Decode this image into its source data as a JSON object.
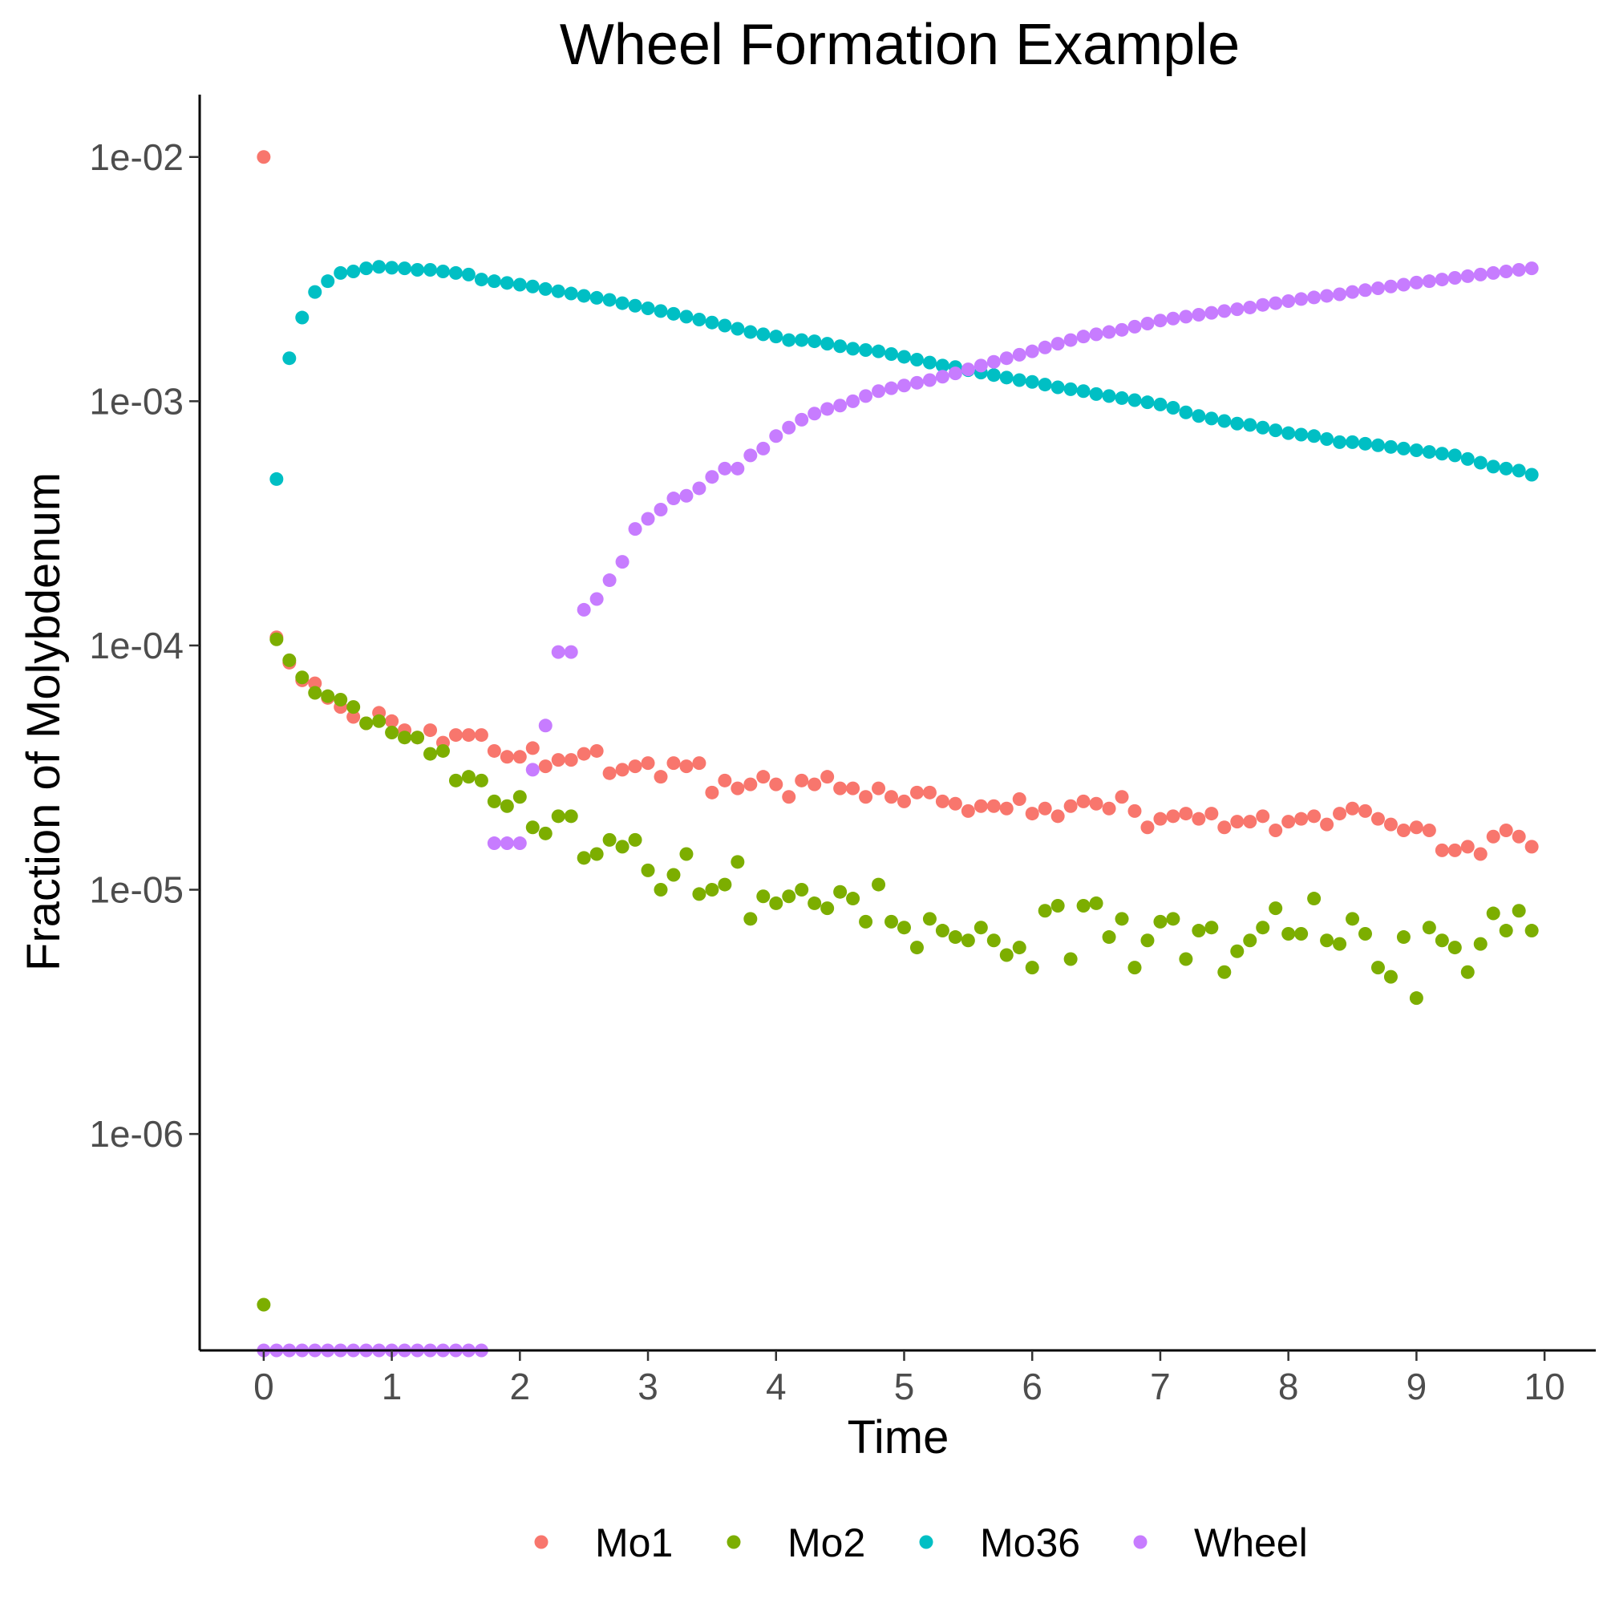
{
  "chart_data": {
    "type": "scatter",
    "title": "Wheel Formation Example",
    "xlabel": "Time",
    "ylabel": "Fraction of Molybdenum",
    "x_scale": "linear",
    "y_scale": "log10",
    "xlim": [
      -0.5,
      10.4
    ],
    "ylim": [
      1.3e-07,
      0.018
    ],
    "x_ticks": [
      0,
      1,
      2,
      3,
      4,
      5,
      6,
      7,
      8,
      9,
      10
    ],
    "x_tick_labels": [
      "0",
      "1",
      "2",
      "3",
      "4",
      "5",
      "6",
      "7",
      "8",
      "9",
      "10"
    ],
    "y_ticks": [
      1e-06,
      1e-05,
      0.0001,
      0.001,
      0.01
    ],
    "y_tick_labels": [
      "1e-06",
      "1e-05",
      "1e-04",
      "1e-03",
      "1e-02"
    ],
    "grid": false,
    "legend_position": "bottom",
    "x": [
      0,
      0.1,
      0.2,
      0.3,
      0.4,
      0.5,
      0.6,
      0.7,
      0.8,
      0.9,
      1.0,
      1.1,
      1.2,
      1.3,
      1.4,
      1.5,
      1.6,
      1.7,
      1.8,
      1.9,
      2.0,
      2.1,
      2.2,
      2.3,
      2.4,
      2.5,
      2.6,
      2.7,
      2.8,
      2.9,
      3.0,
      3.1,
      3.2,
      3.3,
      3.4,
      3.5,
      3.6,
      3.7,
      3.8,
      3.9,
      4.0,
      4.1,
      4.2,
      4.3,
      4.4,
      4.5,
      4.6,
      4.7,
      4.8,
      4.9,
      5.0,
      5.1,
      5.2,
      5.3,
      5.4,
      5.5,
      5.6,
      5.7,
      5.8,
      5.9,
      6.0,
      6.1,
      6.2,
      6.3,
      6.4,
      6.5,
      6.6,
      6.7,
      6.8,
      6.9,
      7.0,
      7.1,
      7.2,
      7.3,
      7.4,
      7.5,
      7.6,
      7.7,
      7.8,
      7.9,
      8.0,
      8.1,
      8.2,
      8.3,
      8.4,
      8.5,
      8.6,
      8.7,
      8.8,
      8.9,
      9.0,
      9.1,
      9.2,
      9.3,
      9.4,
      9.5,
      9.6,
      9.7,
      9.8,
      9.9
    ],
    "series": [
      {
        "name": "Mo1",
        "color": "#F8766D",
        "values": [
          0.01,
          0.000108,
          8.5e-05,
          7.2e-05,
          7e-05,
          6.1e-05,
          5.6e-05,
          5.1e-05,
          4.8e-05,
          5.3e-05,
          4.9e-05,
          4.5e-05,
          4.2e-05,
          4.5e-05,
          4e-05,
          4.3e-05,
          4.3e-05,
          4.3e-05,
          3.7e-05,
          3.5e-05,
          3.5e-05,
          3.8e-05,
          3.2e-05,
          3.4e-05,
          3.4e-05,
          3.6e-05,
          3.7e-05,
          3e-05,
          3.1e-05,
          3.2e-05,
          3.3e-05,
          2.9e-05,
          3.3e-05,
          3.2e-05,
          3.3e-05,
          2.5e-05,
          2.8e-05,
          2.6e-05,
          2.7e-05,
          2.9e-05,
          2.7e-05,
          2.4e-05,
          2.8e-05,
          2.7e-05,
          2.9e-05,
          2.6e-05,
          2.6e-05,
          2.4e-05,
          2.6e-05,
          2.4e-05,
          2.3e-05,
          2.5e-05,
          2.5e-05,
          2.3e-05,
          2.25e-05,
          2.1e-05,
          2.2e-05,
          2.2e-05,
          2.15e-05,
          2.35e-05,
          2.05e-05,
          2.15e-05,
          2e-05,
          2.2e-05,
          2.3e-05,
          2.25e-05,
          2.15e-05,
          2.4e-05,
          2.1e-05,
          1.8e-05,
          1.95e-05,
          2e-05,
          2.05e-05,
          1.95e-05,
          2.05e-05,
          1.8e-05,
          1.9e-05,
          1.9e-05,
          2e-05,
          1.75e-05,
          1.9e-05,
          1.95e-05,
          2e-05,
          1.85e-05,
          2.05e-05,
          2.15e-05,
          2.1e-05,
          1.95e-05,
          1.85e-05,
          1.75e-05,
          1.8e-05,
          1.75e-05,
          1.45e-05,
          1.45e-05,
          1.5e-05,
          1.4e-05,
          1.65e-05,
          1.75e-05,
          1.65e-05,
          1.5e-05
        ]
      },
      {
        "name": "Mo2",
        "color": "#7CAE00",
        "values": [
          2e-07,
          0.000106,
          8.7e-05,
          7.4e-05,
          6.4e-05,
          6.2e-05,
          6e-05,
          5.6e-05,
          4.8e-05,
          4.9e-05,
          4.4e-05,
          4.2e-05,
          4.2e-05,
          3.6e-05,
          3.7e-05,
          2.8e-05,
          2.9e-05,
          2.8e-05,
          2.3e-05,
          2.2e-05,
          2.4e-05,
          1.8e-05,
          1.7e-05,
          2e-05,
          2e-05,
          1.35e-05,
          1.4e-05,
          1.6e-05,
          1.5e-05,
          1.6e-05,
          1.2e-05,
          1e-05,
          1.15e-05,
          1.4e-05,
          9.6e-06,
          1e-05,
          1.05e-05,
          1.3e-05,
          7.6e-06,
          9.4e-06,
          8.8e-06,
          9.4e-06,
          1e-05,
          8.8e-06,
          8.4e-06,
          9.8e-06,
          9.2e-06,
          7.4e-06,
          1.05e-05,
          7.4e-06,
          7e-06,
          5.8e-06,
          7.6e-06,
          6.8e-06,
          6.4e-06,
          6.2e-06,
          7e-06,
          6.2e-06,
          5.4e-06,
          5.8e-06,
          4.8e-06,
          8.2e-06,
          8.6e-06,
          5.2e-06,
          8.6e-06,
          8.8e-06,
          6.4e-06,
          7.6e-06,
          4.8e-06,
          6.2e-06,
          7.4e-06,
          7.6e-06,
          5.2e-06,
          6.8e-06,
          7e-06,
          4.6e-06,
          5.6e-06,
          6.2e-06,
          7e-06,
          8.4e-06,
          6.6e-06,
          6.6e-06,
          9.2e-06,
          6.2e-06,
          6e-06,
          7.6e-06,
          6.6e-06,
          4.8e-06,
          4.4e-06,
          6.4e-06,
          3.6e-06,
          7e-06,
          6.2e-06,
          5.8e-06,
          4.6e-06,
          6e-06,
          8e-06,
          6.8e-06,
          8.2e-06,
          6.8e-06
        ]
      },
      {
        "name": "Mo36",
        "color": "#00BFC4",
        "values": [
          null,
          0.00048,
          0.0015,
          0.0022,
          0.0028,
          0.0031,
          0.00335,
          0.0034,
          0.0035,
          0.00355,
          0.00352,
          0.0035,
          0.00345,
          0.00345,
          0.0034,
          0.00335,
          0.0033,
          0.00315,
          0.0031,
          0.00305,
          0.003,
          0.00295,
          0.00288,
          0.00282,
          0.00276,
          0.0027,
          0.00265,
          0.0026,
          0.00252,
          0.00246,
          0.0024,
          0.00234,
          0.00228,
          0.00222,
          0.00216,
          0.0021,
          0.00204,
          0.00198,
          0.00192,
          0.00188,
          0.00184,
          0.00178,
          0.00178,
          0.00176,
          0.00172,
          0.00168,
          0.00164,
          0.00162,
          0.0016,
          0.00156,
          0.00152,
          0.00148,
          0.00144,
          0.0014,
          0.00138,
          0.00134,
          0.00131,
          0.00128,
          0.00125,
          0.00122,
          0.0012,
          0.00117,
          0.00114,
          0.00112,
          0.0011,
          0.00107,
          0.00105,
          0.00103,
          0.00101,
          0.00099,
          0.00097,
          0.00094,
          0.0009,
          0.00087,
          0.00085,
          0.00083,
          0.00081,
          0.0008,
          0.00078,
          0.00076,
          0.00074,
          0.00073,
          0.00072,
          0.0007,
          0.00068,
          0.00068,
          0.00067,
          0.00066,
          0.00065,
          0.00064,
          0.00063,
          0.00062,
          0.00061,
          0.0006,
          0.00058,
          0.00056,
          0.00054,
          0.00053,
          0.00052,
          0.0005
        ]
      },
      {
        "name": "Wheel",
        "color": "#C77CFF",
        "values": [
          1.3e-07,
          1.3e-07,
          1.3e-07,
          1.3e-07,
          1.3e-07,
          1.3e-07,
          1.3e-07,
          1.3e-07,
          1.3e-07,
          1.3e-07,
          1.3e-07,
          1.3e-07,
          1.3e-07,
          1.3e-07,
          1.3e-07,
          1.3e-07,
          1.3e-07,
          1.3e-07,
          1.55e-05,
          1.55e-05,
          1.55e-05,
          3.1e-05,
          4.7e-05,
          9.4e-05,
          9.4e-05,
          0.00014,
          0.000155,
          0.000185,
          0.00022,
          0.0003,
          0.00033,
          0.00036,
          0.0004,
          0.00041,
          0.00044,
          0.00049,
          0.00053,
          0.00053,
          0.0006,
          0.00064,
          0.00072,
          0.00078,
          0.00084,
          0.00089,
          0.00093,
          0.00096,
          0.001,
          0.00105,
          0.0011,
          0.00113,
          0.00116,
          0.00119,
          0.00122,
          0.00126,
          0.0013,
          0.00135,
          0.0014,
          0.00145,
          0.0015,
          0.00155,
          0.0016,
          0.00166,
          0.00172,
          0.00178,
          0.00184,
          0.00188,
          0.00192,
          0.00196,
          0.00202,
          0.00208,
          0.00214,
          0.00218,
          0.00222,
          0.00226,
          0.0023,
          0.00234,
          0.00238,
          0.00242,
          0.00248,
          0.00252,
          0.00257,
          0.00262,
          0.00266,
          0.0027,
          0.00274,
          0.0028,
          0.00285,
          0.0029,
          0.00295,
          0.003,
          0.00306,
          0.0031,
          0.00315,
          0.0032,
          0.00325,
          0.0033,
          0.00335,
          0.0034,
          0.00345,
          0.0035
        ]
      }
    ]
  }
}
